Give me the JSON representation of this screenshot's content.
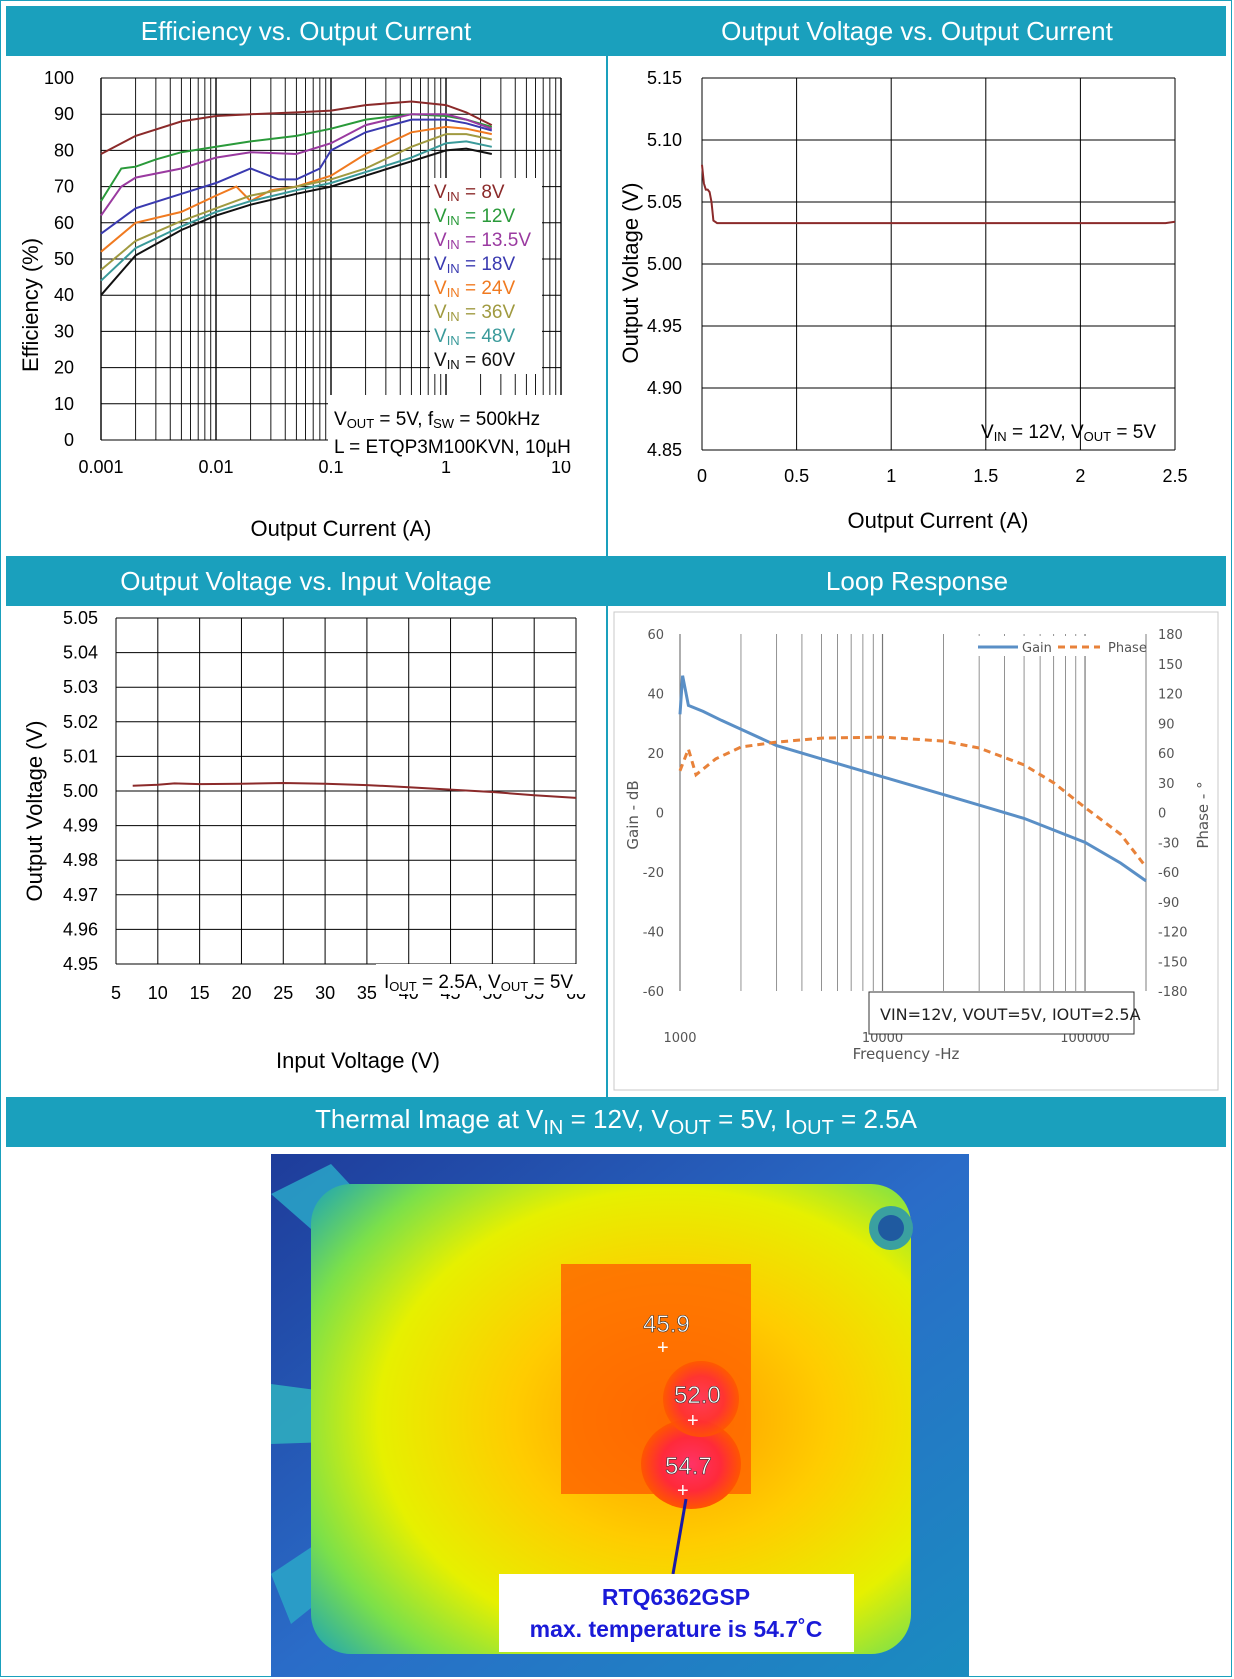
{
  "headers": {
    "efficiency": "Efficiency vs. Output Current",
    "vout_iout": "Output Voltage vs. Output Current",
    "vout_vin": "Output Voltage vs. Input Voltage",
    "loop": "Loop Response",
    "thermal_prefix": "Thermal Image at V",
    "thermal_in_sub": "IN",
    "thermal_mid1": " = 12V, V",
    "thermal_out_sub": "OUT",
    "thermal_mid2": " = 5V, I",
    "thermal_iout_sub": "OUT",
    "thermal_end": " = 2.5A"
  },
  "colors": {
    "header_bg": "#1aa0bd",
    "header_text": "#ffffff"
  },
  "chart_data": [
    {
      "id": "efficiency",
      "type": "line",
      "x_scale": "log",
      "xlim": [
        0.001,
        10
      ],
      "ylim": [
        0,
        100
      ],
      "xlabel": "Output Current (A)",
      "ylabel": "Efficiency (%)",
      "xticks": [
        "0.001",
        "0.01",
        "0.1",
        "1",
        "10"
      ],
      "yticks": [
        "0",
        "10",
        "20",
        "30",
        "40",
        "50",
        "60",
        "70",
        "80",
        "90",
        "100"
      ],
      "grid": true,
      "legend_pos": "right",
      "annotation_line1": "V",
      "annotation_line1_sub": "OUT",
      "annotation_line1_mid": " = 5V, f",
      "annotation_line1_sub2": "SW",
      "annotation_line1_end": " = 500kHz",
      "annotation_line2_pre": "L = ETQP3M100KVN, 10",
      "annotation_line2_mu": "µ",
      "annotation_line2_end": "H",
      "series": [
        {
          "name": "8V",
          "prefix": "V",
          "sub": "IN",
          "color": "#8b2a2a",
          "x": [
            0.001,
            0.002,
            0.005,
            0.01,
            0.02,
            0.05,
            0.1,
            0.2,
            0.5,
            1,
            1.5,
            2.5
          ],
          "y": [
            79,
            84,
            88,
            89.5,
            90,
            90.5,
            91,
            92.5,
            93.5,
            92.5,
            90.5,
            87
          ]
        },
        {
          "name": "12V",
          "prefix": "V",
          "sub": "IN",
          "color": "#2a9a3a",
          "x": [
            0.001,
            0.0015,
            0.002,
            0.003,
            0.005,
            0.01,
            0.02,
            0.05,
            0.1,
            0.2,
            0.5,
            1,
            1.5,
            2.5
          ],
          "y": [
            66,
            75,
            75.5,
            77.5,
            79.5,
            81,
            82.5,
            84,
            86,
            88.5,
            90,
            89.5,
            88.5,
            86.5
          ]
        },
        {
          "name": "13.5V",
          "prefix": "V",
          "sub": "IN",
          "color": "#9a3aa0",
          "x": [
            0.001,
            0.0015,
            0.002,
            0.005,
            0.01,
            0.02,
            0.05,
            0.1,
            0.2,
            0.5,
            1,
            1.5,
            2.5
          ],
          "y": [
            62,
            70,
            72.5,
            75,
            78,
            79.5,
            79,
            82,
            87,
            90,
            90,
            88.5,
            86
          ]
        },
        {
          "name": "18V",
          "prefix": "V",
          "sub": "IN",
          "color": "#3a3ab0",
          "x": [
            0.001,
            0.002,
            0.005,
            0.01,
            0.02,
            0.035,
            0.05,
            0.08,
            0.1,
            0.2,
            0.5,
            1,
            1.5,
            2.5
          ],
          "y": [
            57,
            64,
            68,
            71,
            75,
            72,
            72,
            75,
            80,
            85,
            88.5,
            88.5,
            87.5,
            85.5
          ]
        },
        {
          "name": "24V",
          "prefix": "V",
          "sub": "IN",
          "color": "#f07a20",
          "x": [
            0.001,
            0.002,
            0.005,
            0.01,
            0.015,
            0.02,
            0.03,
            0.05,
            0.1,
            0.2,
            0.5,
            1,
            1.5,
            2.5
          ],
          "y": [
            52,
            60,
            63,
            67.5,
            70,
            66,
            69,
            70,
            73,
            79,
            85,
            86.5,
            86,
            84.5
          ]
        },
        {
          "name": "36V",
          "prefix": "V",
          "sub": "IN",
          "color": "#a09a40",
          "x": [
            0.001,
            0.002,
            0.005,
            0.01,
            0.02,
            0.05,
            0.1,
            0.2,
            0.5,
            1,
            1.5,
            2.5
          ],
          "y": [
            47,
            55,
            60.5,
            64,
            67.5,
            70,
            72,
            75,
            81,
            84.5,
            84.5,
            83
          ]
        },
        {
          "name": "48V",
          "prefix": "V",
          "sub": "IN",
          "color": "#3a9a9a",
          "x": [
            0.001,
            0.002,
            0.005,
            0.01,
            0.02,
            0.05,
            0.1,
            0.2,
            0.5,
            1,
            1.5,
            2.5
          ],
          "y": [
            44,
            53,
            59,
            63,
            66,
            69,
            71,
            74,
            78,
            82,
            82.5,
            81
          ]
        },
        {
          "name": "60V",
          "prefix": "V",
          "sub": "IN",
          "color": "#111111",
          "x": [
            0.001,
            0.002,
            0.005,
            0.01,
            0.02,
            0.05,
            0.1,
            0.2,
            0.5,
            1,
            1.5,
            2.5
          ],
          "y": [
            40,
            51,
            58,
            62,
            65,
            68,
            70,
            73,
            77,
            80,
            80.5,
            79
          ]
        }
      ]
    },
    {
      "id": "vout_iout",
      "type": "line",
      "xlim": [
        0,
        2.5
      ],
      "ylim": [
        4.85,
        5.15
      ],
      "xlabel": "Output Current (A)",
      "ylabel": "Output Voltage (V)",
      "xticks": [
        "0",
        "0.5",
        "1",
        "1.5",
        "2",
        "2.5"
      ],
      "yticks": [
        "4.85",
        "4.90",
        "4.95",
        "5.00",
        "5.05",
        "5.10",
        "5.15"
      ],
      "grid": true,
      "annotation_pre": "V",
      "annotation_sub1": "IN",
      "annotation_mid": " = 12V, V",
      "annotation_sub2": "OUT",
      "annotation_end": " = 5V",
      "series": [
        {
          "color": "#8b2a2a",
          "x": [
            0,
            0.01,
            0.02,
            0.03,
            0.04,
            0.05,
            0.06,
            0.08,
            0.1,
            0.15,
            0.2,
            0.5,
            1,
            1.5,
            2,
            2.45,
            2.5
          ],
          "y": [
            5.08,
            5.065,
            5.06,
            5.06,
            5.058,
            5.05,
            5.035,
            5.033,
            5.033,
            5.033,
            5.033,
            5.033,
            5.033,
            5.033,
            5.033,
            5.033,
            5.034
          ]
        }
      ]
    },
    {
      "id": "vout_vin",
      "type": "line",
      "xlim": [
        5,
        60
      ],
      "ylim": [
        4.95,
        5.05
      ],
      "xlabel": "Input Voltage (V)",
      "ylabel": "Output Voltage (V)",
      "xticks": [
        "5",
        "10",
        "15",
        "20",
        "25",
        "30",
        "35",
        "40",
        "45",
        "50",
        "55",
        "60"
      ],
      "yticks": [
        "4.95",
        "4.96",
        "4.97",
        "4.98",
        "4.99",
        "5.00",
        "5.01",
        "5.02",
        "5.03",
        "5.04",
        "5.05"
      ],
      "grid": true,
      "annotation_pre": "I",
      "annotation_sub1": "OUT",
      "annotation_mid": " = 2.5A, V",
      "annotation_sub2": "OUT",
      "annotation_end": " = 5V",
      "series": [
        {
          "color": "#8b2a2a",
          "x": [
            7,
            10,
            12,
            15,
            20,
            25,
            30,
            35,
            40,
            45,
            50,
            55,
            60
          ],
          "y": [
            5.0015,
            5.0018,
            5.0022,
            5.002,
            5.0021,
            5.0023,
            5.0021,
            5.0017,
            5.0011,
            5.0004,
            4.9997,
            4.9988,
            4.998
          ]
        }
      ]
    },
    {
      "id": "loop",
      "type": "line",
      "x_scale": "log",
      "xlim": [
        1000,
        200000
      ],
      "ylim": [
        -60,
        60
      ],
      "y2lim": [
        -180,
        180
      ],
      "xlabel": "Frequency -Hz",
      "ylabel": "Gain - dB",
      "y2label": "Phase - °",
      "xticks": [
        "1000",
        "10000",
        "100000"
      ],
      "yticks": [
        "-60",
        "-40",
        "-20",
        "0",
        "20",
        "40",
        "60"
      ],
      "y2ticks": [
        "-180",
        "-150",
        "-120",
        "-90",
        "-60",
        "-30",
        "0",
        "30",
        "60",
        "90",
        "120",
        "150",
        "180"
      ],
      "grid": true,
      "legend_pos": "top-right",
      "annotation": "VIN=12V, VOUT=5V, IOUT=2.5A",
      "series": [
        {
          "name": "Gain",
          "axis": "left",
          "color": "#5a8fc6",
          "style": "solid",
          "x": [
            1000,
            1030,
            1100,
            1300,
            1600,
            2000,
            3000,
            5000,
            10000,
            20000,
            30000,
            50000,
            100000,
            150000,
            200000
          ],
          "y": [
            33,
            46,
            36,
            34,
            31,
            28,
            22.5,
            18,
            12,
            6,
            2.5,
            -2,
            -10,
            -17,
            -23
          ]
        },
        {
          "name": "Phase",
          "axis": "right",
          "color": "#e8823a",
          "style": "dashed",
          "x": [
            1000,
            1100,
            1200,
            1500,
            2000,
            3000,
            5000,
            10000,
            20000,
            30000,
            50000,
            70000,
            100000,
            150000,
            200000
          ],
          "y": [
            42,
            64,
            38,
            54,
            66,
            71,
            75,
            76,
            72,
            65,
            48,
            30,
            5,
            -22,
            -55
          ]
        }
      ]
    }
  ],
  "thermal": {
    "readouts": [
      "45.9",
      "52.0",
      "54.7"
    ],
    "callout_line1": "RTQ6362GSP",
    "callout_line2": "max. temperature is 54.7˚C"
  }
}
